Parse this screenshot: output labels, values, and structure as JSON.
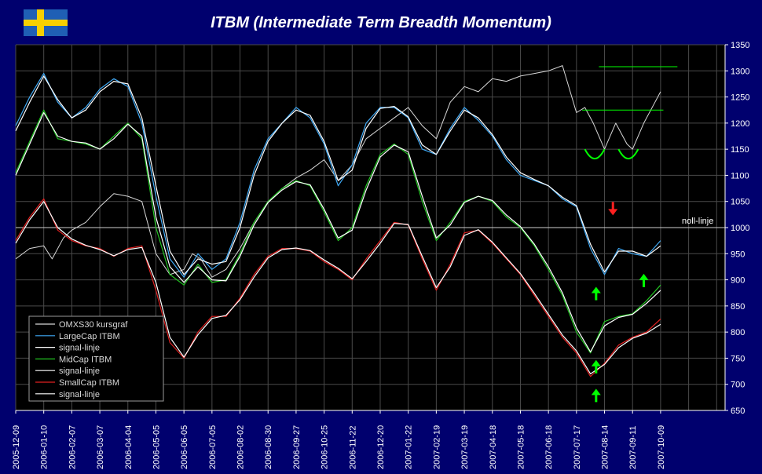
{
  "colors": {
    "background": "#00006e",
    "plot_background": "#000000",
    "grid": "#4a4a4a",
    "omx": "#d8d8d8",
    "signal": "#ffffff",
    "largecap": "#3fa9f5",
    "midcap": "#22c422",
    "smallcap": "#e02020",
    "zero_line": "#d0d0d0",
    "marker_green": "#00ff00",
    "marker_red": "#ff2020"
  },
  "flag": {
    "icon": "swedish-flag-icon",
    "blue": "#1f5fb5",
    "yellow": "#f7d000"
  },
  "chart_data": {
    "type": "line",
    "title": "ITBM (Intermediate Term Breadth Momentum)",
    "ylim": [
      650,
      1350
    ],
    "yticks": [
      650,
      700,
      750,
      800,
      850,
      900,
      950,
      1000,
      1050,
      1100,
      1150,
      1200,
      1250,
      1300,
      1350
    ],
    "xticks": [
      "2005-12-09",
      "2006-01-10",
      "2006-02-07",
      "2006-03-07",
      "2006-04-04",
      "2006-05-05",
      "2006-06-05",
      "2006-07-05",
      "2006-08-02",
      "2006-08-30",
      "2006-09-27",
      "2006-10-25",
      "2006-11-22",
      "2006-12-20",
      "2007-01-22",
      "2007-02-19",
      "2007-03-19",
      "2007-04-18",
      "2007-05-18",
      "2007-06-18",
      "2007-07-17",
      "2007-08-14",
      "2007-09-11",
      "2007-10-09"
    ],
    "x_domain": [
      0,
      25.3
    ],
    "grid": true,
    "legend_position": "bottom-left",
    "zero_line": {
      "value": 1000,
      "label": "noll-linje"
    },
    "series": [
      {
        "name": "OMXS30 kursgraf",
        "key": "omx",
        "x": [
          0,
          0.5,
          1,
          1.3,
          1.7,
          2,
          2.5,
          3,
          3.5,
          4,
          4.5,
          5,
          5.5,
          6,
          6.3,
          6.6,
          7,
          7.5,
          8,
          8.5,
          9,
          9.5,
          10,
          10.5,
          11,
          11.5,
          12,
          12.5,
          13,
          13.5,
          14,
          14.5,
          15,
          15.5,
          16,
          16.5,
          17,
          17.5,
          18,
          18.5,
          19,
          19.5,
          20,
          20.3,
          20.6,
          21,
          21.4,
          21.8,
          22,
          22.4,
          22.8,
          23
        ],
        "y": [
          940,
          960,
          965,
          940,
          980,
          995,
          1010,
          1040,
          1065,
          1060,
          1050,
          950,
          910,
          920,
          950,
          940,
          905,
          920,
          960,
          1010,
          1050,
          1075,
          1095,
          1110,
          1130,
          1090,
          1120,
          1170,
          1190,
          1210,
          1230,
          1195,
          1170,
          1240,
          1270,
          1260,
          1285,
          1280,
          1290,
          1295,
          1300,
          1310,
          1220,
          1230,
          1200,
          1150,
          1200,
          1160,
          1150,
          1200,
          1240,
          1260
        ]
      },
      {
        "name": "LargeCap ITBM",
        "key": "largecap",
        "x": [
          0,
          0.5,
          1,
          1.5,
          2,
          2.5,
          3,
          3.5,
          4,
          4.5,
          5,
          5.5,
          6,
          6.5,
          7,
          7.5,
          8,
          8.5,
          9,
          9.5,
          10,
          10.5,
          11,
          11.5,
          12,
          12.5,
          13,
          13.5,
          14,
          14.5,
          15,
          15.5,
          16,
          16.5,
          17,
          17.5,
          18,
          18.5,
          19,
          19.5,
          20,
          20.5,
          21,
          21.5,
          22,
          22.5,
          23
        ],
        "y": [
          1195,
          1250,
          1295,
          1240,
          1210,
          1230,
          1265,
          1285,
          1270,
          1200,
          1060,
          940,
          905,
          950,
          920,
          940,
          1010,
          1110,
          1170,
          1200,
          1230,
          1210,
          1160,
          1080,
          1120,
          1200,
          1230,
          1230,
          1210,
          1150,
          1140,
          1190,
          1230,
          1205,
          1175,
          1130,
          1100,
          1090,
          1080,
          1055,
          1040,
          960,
          910,
          960,
          950,
          945,
          975
        ]
      },
      {
        "name": "signal-linje",
        "key": "largecap_signal",
        "x": [
          0,
          0.5,
          1,
          1.5,
          2,
          2.5,
          3,
          3.5,
          4,
          4.5,
          5,
          5.5,
          6,
          6.5,
          7,
          7.5,
          8,
          8.5,
          9,
          9.5,
          10,
          10.5,
          11,
          11.5,
          12,
          12.5,
          13,
          13.5,
          14,
          14.5,
          15,
          15.5,
          16,
          16.5,
          17,
          17.5,
          18,
          18.5,
          19,
          19.5,
          20,
          20.5,
          21,
          21.5,
          22,
          22.5,
          23
        ],
        "y": [
          1185,
          1240,
          1290,
          1245,
          1210,
          1225,
          1260,
          1280,
          1275,
          1210,
          1080,
          955,
          910,
          940,
          930,
          935,
          1000,
          1100,
          1165,
          1200,
          1225,
          1215,
          1165,
          1090,
          1110,
          1190,
          1228,
          1232,
          1212,
          1158,
          1140,
          1185,
          1225,
          1210,
          1178,
          1135,
          1105,
          1092,
          1080,
          1058,
          1042,
          968,
          915,
          955,
          955,
          945,
          965
        ]
      },
      {
        "name": "MidCap ITBM",
        "key": "midcap",
        "x": [
          0,
          0.5,
          1,
          1.5,
          2,
          2.5,
          3,
          3.5,
          4,
          4.5,
          5,
          5.5,
          6,
          6.5,
          7,
          7.5,
          8,
          8.5,
          9,
          9.5,
          10,
          10.5,
          11,
          11.5,
          12,
          12.5,
          13,
          13.5,
          14,
          14.5,
          15,
          15.5,
          16,
          16.5,
          17,
          17.5,
          18,
          18.5,
          19,
          19.5,
          20,
          20.5,
          21,
          21.5,
          22,
          22.5,
          23
        ],
        "y": [
          1105,
          1165,
          1225,
          1170,
          1165,
          1160,
          1150,
          1175,
          1200,
          1170,
          1000,
          910,
          890,
          930,
          895,
          900,
          950,
          1010,
          1050,
          1075,
          1090,
          1080,
          1030,
          975,
          1000,
          1080,
          1140,
          1160,
          1140,
          1050,
          975,
          1010,
          1050,
          1060,
          1050,
          1020,
          1000,
          965,
          920,
          870,
          800,
          760,
          820,
          830,
          835,
          860,
          890
        ]
      },
      {
        "name": "signal-linje",
        "key": "midcap_signal",
        "x": [
          0,
          0.5,
          1,
          1.5,
          2,
          2.5,
          3,
          3.5,
          4,
          4.5,
          5,
          5.5,
          6,
          6.5,
          7,
          7.5,
          8,
          8.5,
          9,
          9.5,
          10,
          10.5,
          11,
          11.5,
          12,
          12.5,
          13,
          13.5,
          14,
          14.5,
          15,
          15.5,
          16,
          16.5,
          17,
          17.5,
          18,
          18.5,
          19,
          19.5,
          20,
          20.5,
          21,
          21.5,
          22,
          22.5,
          23
        ],
        "y": [
          1100,
          1160,
          1220,
          1175,
          1165,
          1162,
          1150,
          1170,
          1198,
          1175,
          1020,
          925,
          895,
          925,
          900,
          898,
          945,
          1005,
          1048,
          1072,
          1088,
          1082,
          1035,
          980,
          995,
          1072,
          1135,
          1158,
          1145,
          1060,
          980,
          1005,
          1048,
          1060,
          1052,
          1024,
          1002,
          968,
          925,
          875,
          808,
          762,
          812,
          828,
          834,
          855,
          880
        ]
      },
      {
        "name": "SmallCap ITBM",
        "key": "smallcap",
        "x": [
          0,
          0.5,
          1,
          1.5,
          2,
          2.5,
          3,
          3.5,
          4,
          4.5,
          5,
          5.5,
          6,
          6.5,
          7,
          7.5,
          8,
          8.5,
          9,
          9.5,
          10,
          10.5,
          11,
          11.5,
          12,
          12.5,
          13,
          13.5,
          14,
          14.5,
          15,
          15.5,
          16,
          16.5,
          17,
          17.5,
          18,
          18.5,
          19,
          19.5,
          20,
          20.5,
          21,
          21.5,
          22,
          22.5,
          23
        ],
        "y": [
          975,
          1020,
          1055,
          995,
          975,
          965,
          960,
          945,
          960,
          965,
          880,
          780,
          750,
          800,
          830,
          830,
          865,
          910,
          945,
          960,
          960,
          955,
          935,
          920,
          900,
          940,
          975,
          1010,
          1005,
          940,
          880,
          930,
          990,
          995,
          970,
          940,
          910,
          870,
          830,
          790,
          760,
          715,
          740,
          775,
          790,
          800,
          825
        ]
      },
      {
        "name": "signal-linje",
        "key": "smallcap_signal",
        "x": [
          0,
          0.5,
          1,
          1.5,
          2,
          2.5,
          3,
          3.5,
          4,
          4.5,
          5,
          5.5,
          6,
          6.5,
          7,
          7.5,
          8,
          8.5,
          9,
          9.5,
          10,
          10.5,
          11,
          11.5,
          12,
          12.5,
          13,
          13.5,
          14,
          14.5,
          15,
          15.5,
          16,
          16.5,
          17,
          17.5,
          18,
          18.5,
          19,
          19.5,
          20,
          20.5,
          21,
          21.5,
          22,
          22.5,
          23
        ],
        "y": [
          970,
          1015,
          1050,
          1000,
          978,
          966,
          958,
          946,
          958,
          962,
          895,
          790,
          752,
          795,
          826,
          832,
          862,
          905,
          942,
          958,
          961,
          956,
          938,
          922,
          902,
          935,
          970,
          1008,
          1006,
          945,
          885,
          925,
          985,
          996,
          972,
          942,
          912,
          874,
          834,
          794,
          764,
          720,
          738,
          770,
          788,
          798,
          815
        ]
      }
    ],
    "annotations": {
      "hlines": [
        {
          "y": 1308,
          "x0": 20.8,
          "x1": 23.6
        },
        {
          "y": 1225,
          "x0": 20.2,
          "x1": 23.1
        }
      ],
      "arcs": [
        {
          "x0": 20.3,
          "x1": 21.0,
          "y": 1150
        },
        {
          "x0": 21.5,
          "x1": 22.2,
          "y": 1150
        }
      ],
      "arrows_up": [
        {
          "x": 20.7,
          "y": 885
        },
        {
          "x": 20.7,
          "y": 745
        },
        {
          "x": 20.7,
          "y": 690
        },
        {
          "x": 22.4,
          "y": 910
        }
      ],
      "arrows_down": [
        {
          "x": 21.3,
          "y": 1025
        }
      ]
    }
  }
}
